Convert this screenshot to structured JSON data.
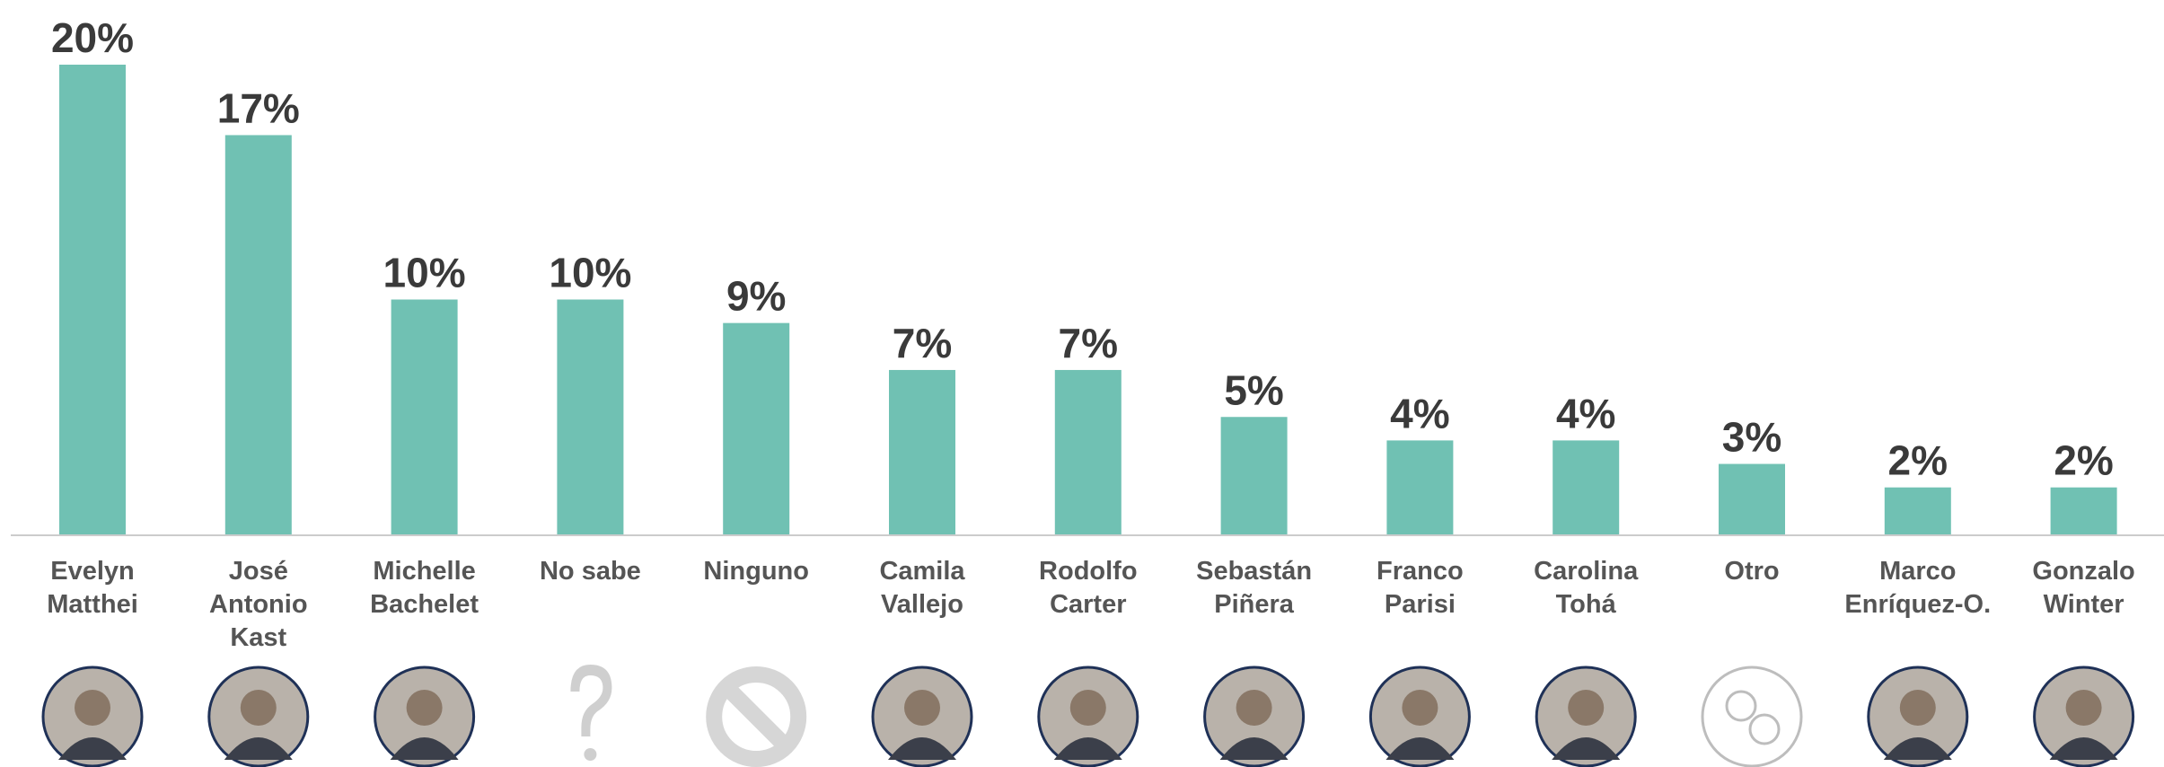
{
  "chart_data": {
    "type": "bar",
    "categories": [
      [
        "Evelyn",
        "Matthei"
      ],
      [
        "José",
        "Antonio",
        "Kast"
      ],
      [
        "Michelle",
        "Bachelet"
      ],
      [
        "No sabe"
      ],
      [
        "Ninguno"
      ],
      [
        "Camila",
        "Vallejo"
      ],
      [
        "Rodolfo",
        "Carter"
      ],
      [
        "Sebastán",
        "Piñera"
      ],
      [
        "Franco",
        "Parisi"
      ],
      [
        "Carolina",
        "Tohá"
      ],
      [
        "Otro"
      ],
      [
        "Marco",
        "Enríquez-O."
      ],
      [
        "Gonzalo",
        "Winter"
      ]
    ],
    "values": [
      20,
      17,
      10,
      10,
      9,
      7,
      7,
      5,
      4,
      4,
      3,
      2,
      2
    ],
    "value_labels": [
      "20%",
      "17%",
      "10%",
      "10%",
      "9%",
      "7%",
      "7%",
      "5%",
      "4%",
      "4%",
      "3%",
      "2%",
      "2%"
    ],
    "color": "#70c1b3"
  }
}
